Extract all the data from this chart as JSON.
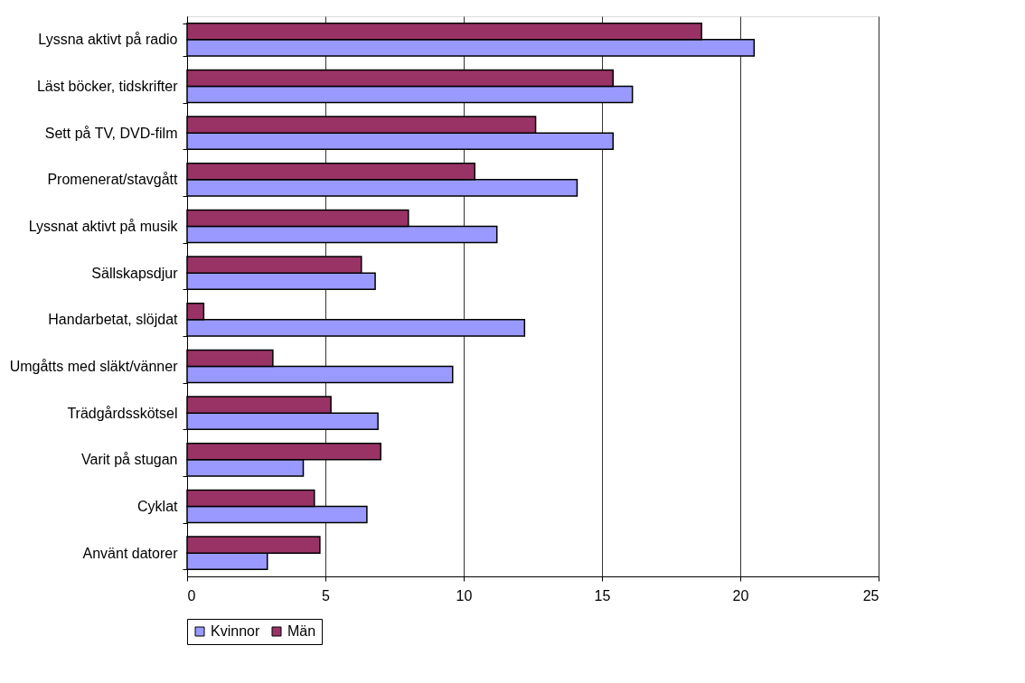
{
  "chart_data": {
    "type": "bar",
    "orientation": "horizontal",
    "categories": [
      "Lyssna aktivt på radio",
      "Läst böcker, tidskrifter",
      "Sett på TV, DVD-film",
      "Promenerat/stavgått",
      "Lyssnat aktivt på musik",
      "Sällskapsdjur",
      "Handarbetat, slöjdat",
      "Umgåtts med släkt/vänner",
      "Trädgårdsskötsel",
      "Varit på stugan",
      "Cyklat",
      "Använt datorer"
    ],
    "series": [
      {
        "name": "Kvinnor",
        "color": "#9999ff",
        "values": [
          20.5,
          16.1,
          15.4,
          14.1,
          11.2,
          6.8,
          12.2,
          9.6,
          6.9,
          4.2,
          6.5,
          2.9
        ]
      },
      {
        "name": "Män",
        "color": "#993366",
        "values": [
          18.6,
          15.4,
          12.6,
          10.4,
          8.0,
          6.3,
          0.6,
          3.1,
          5.2,
          7.0,
          4.6,
          4.8
        ]
      }
    ],
    "xlim": [
      0,
      25
    ],
    "xticks": [
      0,
      5,
      10,
      15,
      20,
      25
    ],
    "grid": "x",
    "legend": "bottom"
  }
}
